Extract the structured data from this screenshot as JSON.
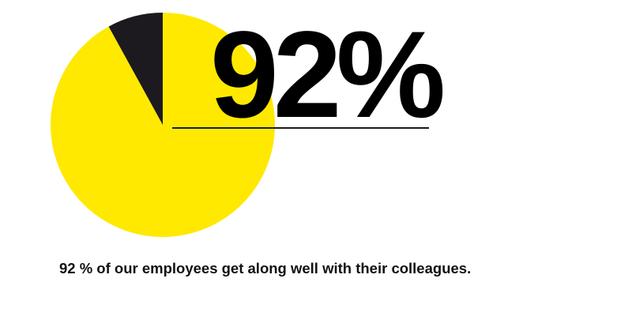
{
  "chart_data": {
    "type": "pie",
    "slices": [
      {
        "value": 92,
        "color": "#ffe900"
      },
      {
        "value": 8,
        "color": "#1d1a1f"
      }
    ],
    "headline": "92%",
    "caption": "92 % of our employees get along well with their colleagues."
  }
}
